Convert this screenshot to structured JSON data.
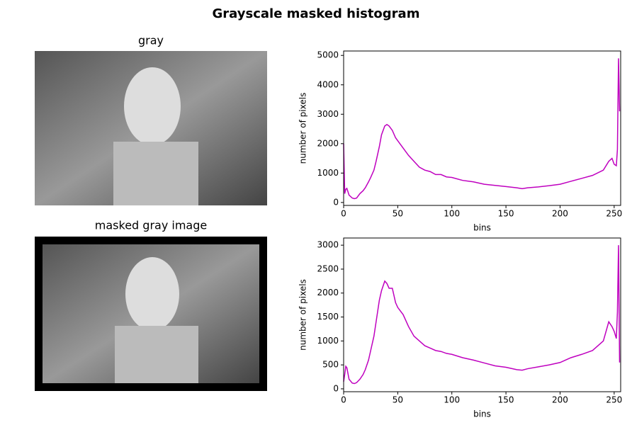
{
  "title": "Grayscale masked histogram",
  "images": [
    {
      "title": "gray"
    },
    {
      "title": "masked gray image"
    }
  ],
  "chart_data": [
    {
      "type": "line",
      "xlabel": "bins",
      "ylabel": "number of pixels",
      "xlim": [
        0,
        256
      ],
      "ylim": [
        -100,
        5150
      ],
      "xticks": [
        0,
        50,
        100,
        150,
        200,
        250
      ],
      "yticks": [
        0,
        1000,
        2000,
        3000,
        4000,
        5000
      ],
      "grid": false,
      "series": [
        {
          "color": "#bf00bf",
          "x": [
            0,
            1,
            2,
            3,
            5,
            8,
            10,
            12,
            15,
            18,
            20,
            23,
            25,
            28,
            30,
            33,
            35,
            38,
            40,
            42,
            45,
            48,
            50,
            55,
            60,
            65,
            70,
            75,
            80,
            85,
            90,
            95,
            100,
            110,
            120,
            130,
            140,
            150,
            160,
            165,
            170,
            180,
            190,
            200,
            210,
            220,
            230,
            240,
            245,
            248,
            250,
            252,
            253,
            254,
            255
          ],
          "values": [
            2000,
            300,
            450,
            480,
            250,
            150,
            130,
            150,
            300,
            400,
            500,
            700,
            850,
            1100,
            1400,
            1900,
            2300,
            2600,
            2650,
            2600,
            2450,
            2200,
            2100,
            1850,
            1600,
            1400,
            1200,
            1100,
            1050,
            950,
            950,
            870,
            850,
            750,
            700,
            620,
            580,
            540,
            500,
            470,
            500,
            530,
            570,
            620,
            720,
            820,
            920,
            1100,
            1400,
            1500,
            1300,
            1250,
            1800,
            4900,
            3100
          ]
        }
      ]
    },
    {
      "type": "line",
      "xlabel": "bins",
      "ylabel": "number of pixels",
      "xlim": [
        0,
        256
      ],
      "ylim": [
        -60,
        3150
      ],
      "xticks": [
        0,
        50,
        100,
        150,
        200,
        250
      ],
      "yticks": [
        0,
        500,
        1000,
        1500,
        2000,
        2500,
        3000
      ],
      "grid": false,
      "series": [
        {
          "color": "#bf00bf",
          "x": [
            0,
            1,
            2,
            3,
            5,
            8,
            10,
            12,
            15,
            18,
            20,
            23,
            25,
            28,
            30,
            33,
            35,
            38,
            40,
            42,
            45,
            48,
            50,
            55,
            60,
            65,
            70,
            75,
            80,
            85,
            90,
            95,
            100,
            110,
            120,
            130,
            140,
            150,
            160,
            165,
            170,
            180,
            190,
            200,
            210,
            220,
            230,
            240,
            245,
            248,
            250,
            252,
            253,
            254,
            255
          ],
          "values": [
            150,
            300,
            470,
            440,
            200,
            120,
            110,
            130,
            200,
            300,
            400,
            600,
            800,
            1100,
            1400,
            1850,
            2050,
            2250,
            2200,
            2100,
            2100,
            1800,
            1700,
            1550,
            1300,
            1100,
            1000,
            900,
            850,
            800,
            780,
            740,
            720,
            650,
            600,
            540,
            480,
            450,
            400,
            390,
            420,
            460,
            500,
            550,
            650,
            720,
            800,
            1000,
            1400,
            1300,
            1200,
            1050,
            1600,
            3000,
            550
          ]
        }
      ]
    }
  ]
}
